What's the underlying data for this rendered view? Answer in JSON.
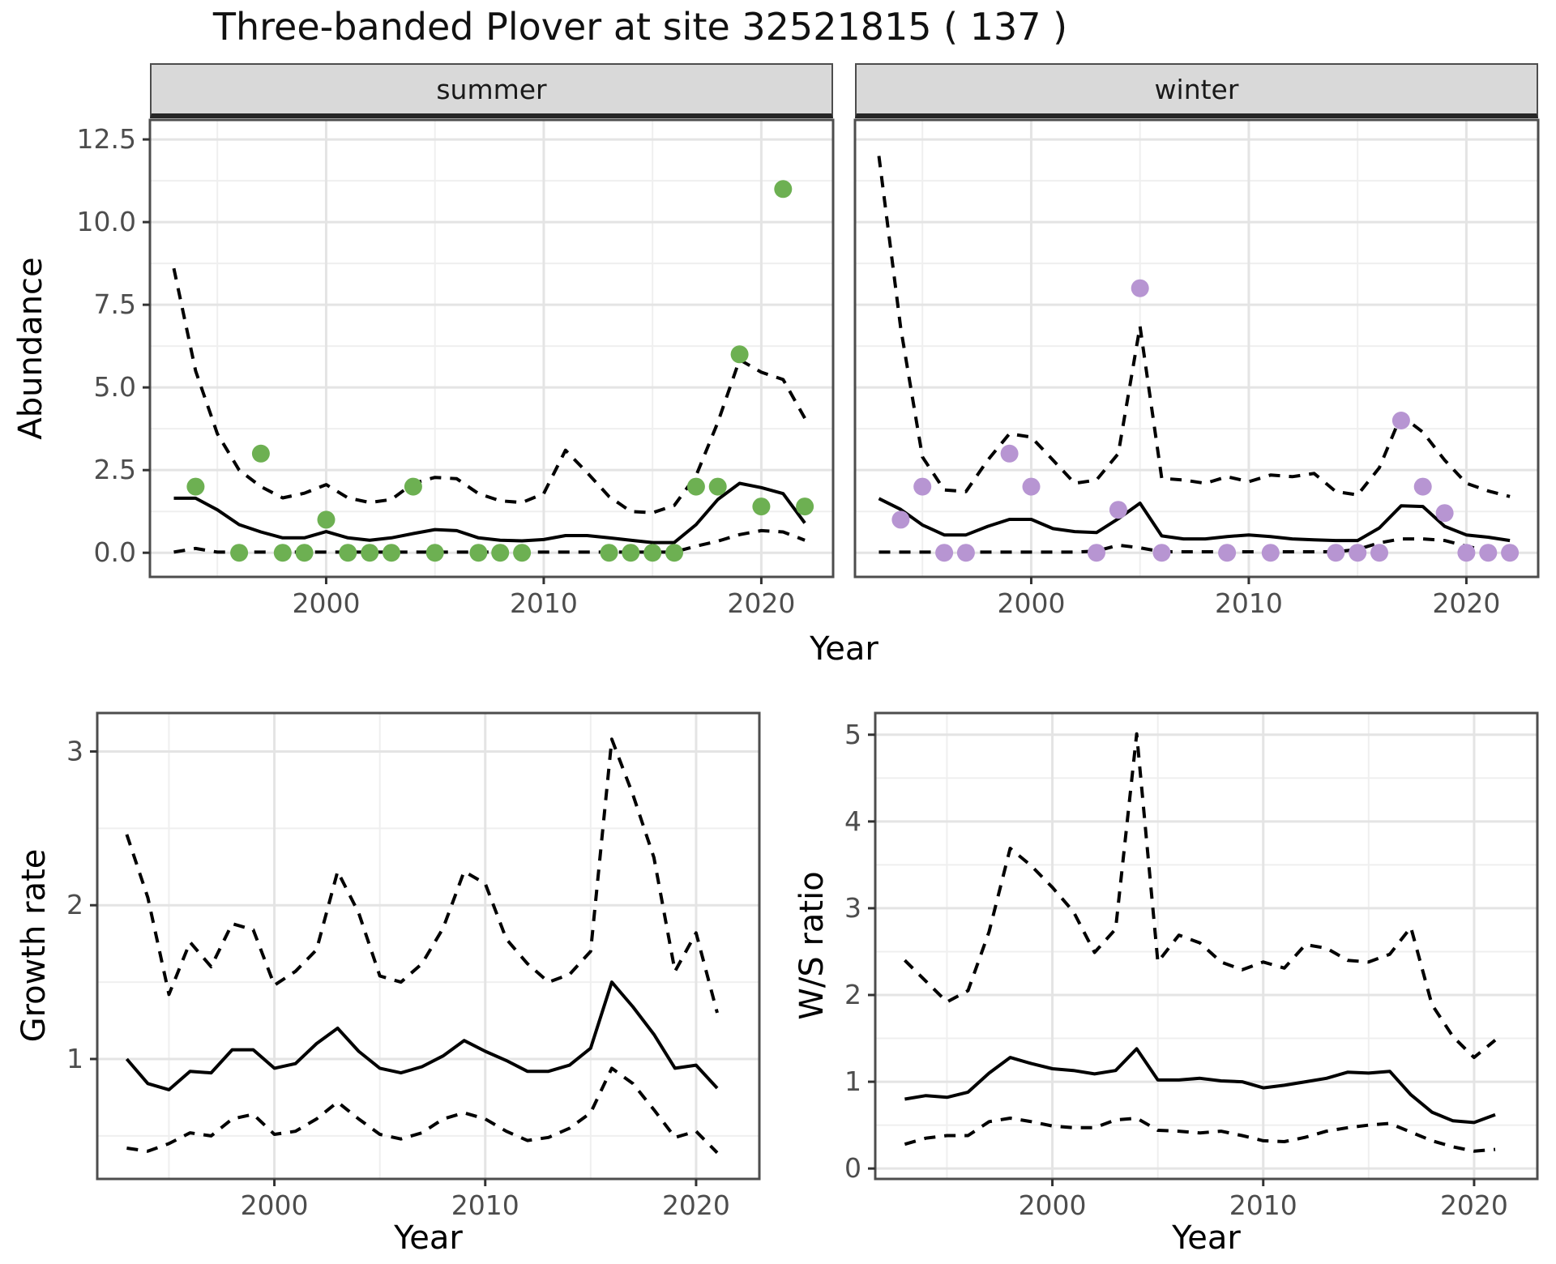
{
  "title": "Three-banded Plover at site 32521815 ( 137 )",
  "colors": {
    "summer_point": "#6db052",
    "winter_point": "#b795d2",
    "line": "#000000",
    "grid_major": "#e4e4e4",
    "grid_minor": "#efefef",
    "strip_bg": "#d9d9d9",
    "panel_border": "#4d4d4d",
    "tick_text": "#4d4d4d"
  },
  "chart_data": [
    {
      "id": "abundance-summer",
      "type": "line",
      "facet_label": "summer",
      "xlabel": "Year",
      "ylabel": "Abundance",
      "x": [
        1993,
        1994,
        1995,
        1996,
        1997,
        1998,
        1999,
        2000,
        2001,
        2002,
        2003,
        2004,
        2005,
        2006,
        2007,
        2008,
        2009,
        2010,
        2011,
        2012,
        2013,
        2014,
        2015,
        2016,
        2017,
        2018,
        2019,
        2020,
        2021,
        2022
      ],
      "series": [
        {
          "name": "mean",
          "style": "solid",
          "values": [
            1.65,
            1.65,
            1.3,
            0.85,
            0.63,
            0.45,
            0.45,
            0.64,
            0.45,
            0.38,
            0.45,
            0.58,
            0.7,
            0.67,
            0.45,
            0.38,
            0.36,
            0.4,
            0.52,
            0.52,
            0.45,
            0.38,
            0.31,
            0.31,
            0.85,
            1.61,
            2.1,
            1.97,
            1.79,
            0.9
          ]
        },
        {
          "name": "upper_ci",
          "style": "dashed",
          "values": [
            8.6,
            5.5,
            3.6,
            2.5,
            2.0,
            1.66,
            1.8,
            2.06,
            1.66,
            1.52,
            1.61,
            2.1,
            2.28,
            2.24,
            1.79,
            1.57,
            1.52,
            1.79,
            3.1,
            2.42,
            1.7,
            1.25,
            1.21,
            1.43,
            2.33,
            3.94,
            5.84,
            5.46,
            5.24,
            4.07
          ]
        },
        {
          "name": "lower_ci",
          "style": "dashed",
          "values": [
            0.02,
            0.13,
            0.02,
            0.02,
            0.02,
            0.02,
            0.02,
            0.02,
            0.02,
            0.02,
            0.02,
            0.02,
            0.02,
            0.02,
            0.02,
            0.02,
            0.02,
            0.02,
            0.02,
            0.02,
            0.02,
            0.02,
            0.02,
            0.02,
            0.2,
            0.35,
            0.55,
            0.67,
            0.63,
            0.38
          ]
        }
      ],
      "points": {
        "name": "observed-counts-summer",
        "x": [
          1994,
          1996,
          1997,
          1998,
          1999,
          2000,
          2001,
          2002,
          2003,
          2004,
          2005,
          2007,
          2008,
          2009,
          2013,
          2014,
          2015,
          2016,
          2017,
          2018,
          2019,
          2020,
          2021,
          2022
        ],
        "y": [
          2,
          0,
          3,
          0,
          0,
          1,
          0,
          0,
          0,
          2,
          0,
          0,
          0,
          0,
          0,
          0,
          0,
          0,
          2,
          2,
          6,
          1.4,
          11,
          1.4
        ]
      },
      "xticks": [
        2000,
        2010,
        2020
      ],
      "yticks": [
        0,
        2.5,
        5,
        7.5,
        10,
        12.5
      ],
      "ytick_labels": [
        "0.0",
        "2.5",
        "5.0",
        "7.5",
        "10.0",
        "12.5"
      ],
      "xlim": [
        1991.9,
        2023.3
      ],
      "ylim": [
        -0.73,
        13.09
      ],
      "grid": true,
      "legend": "none"
    },
    {
      "id": "abundance-winter",
      "type": "line",
      "facet_label": "winter",
      "xlabel": "Year",
      "ylabel": "Abundance",
      "x": [
        1993,
        1994,
        1995,
        1996,
        1997,
        1998,
        1999,
        2000,
        2001,
        2002,
        2003,
        2004,
        2005,
        2006,
        2007,
        2008,
        2009,
        2010,
        2011,
        2012,
        2013,
        2014,
        2015,
        2016,
        2017,
        2018,
        2019,
        2020,
        2021,
        2022
      ],
      "series": [
        {
          "name": "mean",
          "style": "solid",
          "values": [
            1.64,
            1.31,
            0.84,
            0.54,
            0.54,
            0.8,
            1.01,
            1.01,
            0.73,
            0.64,
            0.61,
            1.03,
            1.5,
            0.51,
            0.42,
            0.42,
            0.49,
            0.54,
            0.49,
            0.42,
            0.39,
            0.37,
            0.37,
            0.75,
            1.42,
            1.4,
            0.8,
            0.54,
            0.47,
            0.37
          ]
        },
        {
          "name": "upper_ci",
          "style": "dashed",
          "values": [
            12.0,
            6.8,
            2.9,
            1.9,
            1.85,
            2.8,
            3.6,
            3.5,
            2.8,
            2.1,
            2.2,
            3.0,
            6.85,
            2.25,
            2.2,
            2.1,
            2.3,
            2.15,
            2.35,
            2.3,
            2.4,
            1.85,
            1.75,
            2.57,
            4.15,
            3.65,
            2.8,
            2.1,
            1.87,
            1.7
          ]
        },
        {
          "name": "lower_ci",
          "style": "dashed",
          "values": [
            0.02,
            0.02,
            0.02,
            0.02,
            0.02,
            0.02,
            0.02,
            0.02,
            0.02,
            0.02,
            0.05,
            0.23,
            0.15,
            0.03,
            0.03,
            0.03,
            0.03,
            0.03,
            0.03,
            0.03,
            0.03,
            0.03,
            0.1,
            0.3,
            0.42,
            0.42,
            0.37,
            0.2,
            0.05,
            0.03
          ]
        }
      ],
      "points": {
        "name": "observed-counts-winter",
        "x": [
          1994,
          1995,
          1996,
          1997,
          1999,
          2000,
          2003,
          2004,
          2005,
          2006,
          2009,
          2011,
          2014,
          2015,
          2016,
          2017,
          2018,
          2019,
          2020,
          2021,
          2022
        ],
        "y": [
          1,
          2,
          0,
          0,
          3,
          2,
          0,
          1.3,
          8,
          0,
          0,
          0,
          0,
          0,
          0,
          4,
          2,
          1.2,
          0,
          0,
          0
        ]
      },
      "xticks": [
        2000,
        2010,
        2020
      ],
      "yticks": [
        0,
        2.5,
        5,
        7.5,
        10,
        12.5
      ],
      "ytick_labels": [],
      "xlim": [
        1991.9,
        2023.3
      ],
      "ylim": [
        -0.73,
        13.09
      ],
      "grid": true,
      "legend": "none"
    },
    {
      "id": "growth-rate",
      "type": "line",
      "facet_label": "",
      "xlabel": "Year",
      "ylabel": "Growth rate",
      "x": [
        1993,
        1994,
        1995,
        1996,
        1997,
        1998,
        1999,
        2000,
        2001,
        2002,
        2003,
        2004,
        2005,
        2006,
        2007,
        2008,
        2009,
        2010,
        2011,
        2012,
        2013,
        2014,
        2015,
        2016,
        2017,
        2018,
        2019,
        2020,
        2021
      ],
      "series": [
        {
          "name": "mean",
          "style": "solid",
          "values": [
            1.0,
            0.84,
            0.8,
            0.92,
            0.91,
            1.06,
            1.06,
            0.94,
            0.97,
            1.1,
            1.2,
            1.05,
            0.94,
            0.91,
            0.95,
            1.02,
            1.12,
            1.05,
            0.99,
            0.92,
            0.92,
            0.96,
            1.07,
            1.5,
            1.34,
            1.16,
            0.94,
            0.96,
            0.81
          ]
        },
        {
          "name": "upper_ci",
          "style": "dashed",
          "values": [
            2.46,
            2.05,
            1.42,
            1.76,
            1.6,
            1.88,
            1.84,
            1.48,
            1.57,
            1.71,
            2.22,
            1.95,
            1.54,
            1.5,
            1.62,
            1.85,
            2.22,
            2.14,
            1.78,
            1.62,
            1.5,
            1.55,
            1.7,
            3.08,
            2.72,
            2.31,
            1.57,
            1.82,
            1.3
          ]
        },
        {
          "name": "lower_ci",
          "style": "dashed",
          "values": [
            0.42,
            0.4,
            0.45,
            0.52,
            0.5,
            0.61,
            0.64,
            0.51,
            0.53,
            0.61,
            0.72,
            0.61,
            0.51,
            0.48,
            0.52,
            0.61,
            0.65,
            0.61,
            0.53,
            0.47,
            0.49,
            0.55,
            0.65,
            0.94,
            0.84,
            0.67,
            0.49,
            0.53,
            0.39
          ]
        }
      ],
      "points": {
        "name": "",
        "x": [],
        "y": []
      },
      "xticks": [
        2000,
        2010,
        2020
      ],
      "yticks": [
        1,
        2,
        3
      ],
      "ytick_labels": [
        "1",
        "2",
        "3"
      ],
      "xlim": [
        1991.6,
        2023.0
      ],
      "ylim": [
        0.22,
        3.25
      ],
      "grid": true,
      "legend": "none"
    },
    {
      "id": "ws-ratio",
      "type": "line",
      "facet_label": "",
      "xlabel": "Year",
      "ylabel": "W/S ratio",
      "x": [
        1993,
        1994,
        1995,
        1996,
        1997,
        1998,
        1999,
        2000,
        2001,
        2002,
        2003,
        2004,
        2005,
        2006,
        2007,
        2008,
        2009,
        2010,
        2011,
        2012,
        2013,
        2014,
        2015,
        2016,
        2017,
        2018,
        2019,
        2020,
        2021
      ],
      "series": [
        {
          "name": "mean",
          "style": "solid",
          "values": [
            0.8,
            0.84,
            0.82,
            0.88,
            1.1,
            1.28,
            1.21,
            1.15,
            1.13,
            1.09,
            1.13,
            1.38,
            1.02,
            1.02,
            1.04,
            1.01,
            1.0,
            0.93,
            0.96,
            1.0,
            1.04,
            1.11,
            1.1,
            1.12,
            0.85,
            0.65,
            0.55,
            0.53,
            0.62
          ]
        },
        {
          "name": "upper_ci",
          "style": "dashed",
          "values": [
            2.4,
            2.16,
            1.92,
            2.05,
            2.73,
            3.69,
            3.49,
            3.24,
            2.96,
            2.49,
            2.76,
            5.01,
            2.38,
            2.69,
            2.6,
            2.38,
            2.29,
            2.38,
            2.31,
            2.58,
            2.54,
            2.4,
            2.38,
            2.47,
            2.78,
            1.89,
            1.52,
            1.28,
            1.48
          ]
        },
        {
          "name": "lower_ci",
          "style": "dashed",
          "values": [
            0.28,
            0.35,
            0.38,
            0.38,
            0.54,
            0.58,
            0.54,
            0.49,
            0.47,
            0.47,
            0.56,
            0.58,
            0.44,
            0.43,
            0.41,
            0.43,
            0.38,
            0.32,
            0.31,
            0.36,
            0.43,
            0.47,
            0.5,
            0.52,
            0.42,
            0.32,
            0.25,
            0.2,
            0.22
          ]
        }
      ],
      "points": {
        "name": "",
        "x": [],
        "y": []
      },
      "xticks": [
        2000,
        2010,
        2020
      ],
      "yticks": [
        0,
        1,
        2,
        3,
        4,
        5
      ],
      "ytick_labels": [
        "0",
        "1",
        "2",
        "3",
        "4",
        "5"
      ],
      "xlim": [
        1991.6,
        2023.0
      ],
      "ylim": [
        -0.12,
        5.25
      ],
      "grid": true,
      "legend": "none"
    }
  ]
}
